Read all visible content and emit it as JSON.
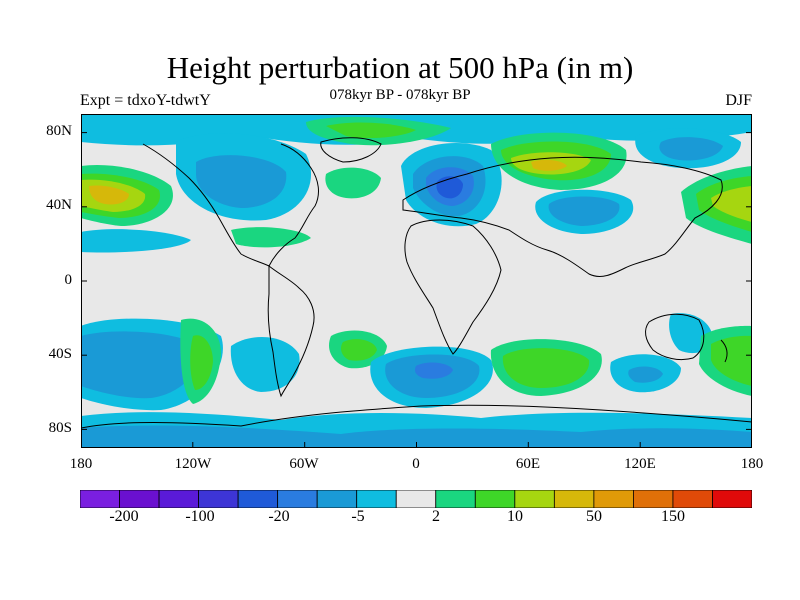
{
  "title": "Height perturbation at 500 hPa (in m)",
  "subtitle": "078kyr BP - 078kyr BP",
  "left_label": "Expt = tdxoY-tdwtY",
  "right_label": "DJF",
  "lat_labels": [
    "80N",
    "40N",
    "0",
    "40S",
    "80S"
  ],
  "lon_labels": [
    "180",
    "120W",
    "60W",
    "0",
    "60E",
    "120E",
    "180"
  ],
  "colorbar": {
    "colors": [
      "#7a1fe0",
      "#6a10d0",
      "#5a1ad8",
      "#3d35d6",
      "#1f5ad8",
      "#2a7ce0",
      "#1a9ad6",
      "#0fbde0",
      "#e8e8e8",
      "#1ad680",
      "#3ed628",
      "#a6d610",
      "#d6b80a",
      "#e09a08",
      "#e07008",
      "#e04a08",
      "#e00a0a"
    ],
    "labels": [
      "-200",
      "-100",
      "-20",
      "-5",
      "2",
      "10",
      "50",
      "150"
    ]
  },
  "chart_data": {
    "type": "heatmap",
    "title": "Height perturbation at 500 hPa (in m)",
    "subtitle": "078kyr BP - 078kyr BP",
    "season": "DJF",
    "experiment": "Expt = tdxoY-tdwtY",
    "x_range": [
      -180,
      180
    ],
    "y_range": [
      -90,
      90
    ],
    "x_ticks": [
      -180,
      -120,
      -60,
      0,
      60,
      120,
      180
    ],
    "y_ticks": [
      80,
      40,
      0,
      -40,
      -80
    ],
    "contour_levels": [
      -200,
      -100,
      -20,
      -5,
      2,
      10,
      50,
      150
    ],
    "anomaly_centers": [
      {
        "lon": 15,
        "lat": 55,
        "value": -25
      },
      {
        "lon": -168,
        "lat": 48,
        "value": 15
      },
      {
        "lon": 168,
        "lat": 48,
        "value": 12
      },
      {
        "lon": 68,
        "lat": 62,
        "value": 12
      },
      {
        "lon": -105,
        "lat": 50,
        "value": -8
      },
      {
        "lon": 115,
        "lat": 75,
        "value": -8
      },
      {
        "lon": 90,
        "lat": 38,
        "value": -8
      },
      {
        "lon": 10,
        "lat": -48,
        "value": -12
      },
      {
        "lon": 60,
        "lat": -50,
        "value": 10
      },
      {
        "lon": -150,
        "lat": -38,
        "value": -10
      },
      {
        "lon": -100,
        "lat": -40,
        "value": 6
      },
      {
        "lon": -30,
        "lat": -38,
        "value": 4
      },
      {
        "lon": 165,
        "lat": -40,
        "value": 8
      },
      {
        "lon": 100,
        "lat": -50,
        "value": -6
      }
    ]
  }
}
